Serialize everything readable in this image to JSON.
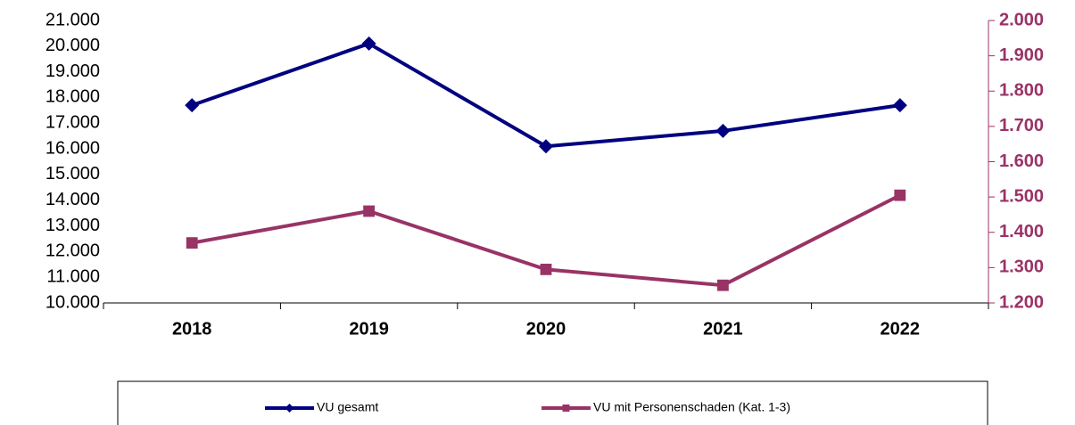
{
  "chart_data": {
    "type": "line",
    "categories": [
      "2018",
      "2019",
      "2020",
      "2021",
      "2022"
    ],
    "series": [
      {
        "name": "VU gesamt",
        "color": "#000080",
        "marker": "diamond",
        "values": [
          17700,
          20100,
          16100,
          16700,
          17700
        ]
      },
      {
        "name": "VU mit Personenschaden (Kat. 1-3)",
        "color": "#993366",
        "marker": "square",
        "axis": "y2",
        "values": [
          1370,
          1460,
          1295,
          1250,
          1505
        ]
      }
    ],
    "ylim": [
      10000,
      21000
    ],
    "yticks": [
      {
        "value": 10000,
        "label": "10.000"
      },
      {
        "value": 11000,
        "label": "11.000"
      },
      {
        "value": 12000,
        "label": "12.000"
      },
      {
        "value": 13000,
        "label": "13.000"
      },
      {
        "value": 14000,
        "label": "14.000"
      },
      {
        "value": 15000,
        "label": "15.000"
      },
      {
        "value": 16000,
        "label": "16.000"
      },
      {
        "value": 17000,
        "label": "17.000"
      },
      {
        "value": 18000,
        "label": "18.000"
      },
      {
        "value": 19000,
        "label": "19.000"
      },
      {
        "value": 20000,
        "label": "20.000"
      },
      {
        "value": 21000,
        "label": "21.000"
      }
    ],
    "y2lim": [
      1200,
      2000
    ],
    "y2ticks": [
      {
        "value": 1200,
        "label": "1.200"
      },
      {
        "value": 1300,
        "label": "1.300"
      },
      {
        "value": 1400,
        "label": "1.400"
      },
      {
        "value": 1500,
        "label": "1.500"
      },
      {
        "value": 1600,
        "label": "1.600"
      },
      {
        "value": 1700,
        "label": "1.700"
      },
      {
        "value": 1800,
        "label": "1.800"
      },
      {
        "value": 1900,
        "label": "1.900"
      },
      {
        "value": 2000,
        "label": "2.000"
      }
    ],
    "y2color": "#993366",
    "legend": "bottom"
  }
}
